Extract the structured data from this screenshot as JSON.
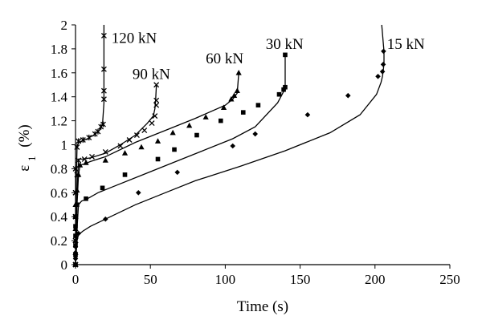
{
  "chart_data": {
    "type": "scatter",
    "title": "",
    "xlabel": "Time (s)",
    "ylabel": "ε1 (%)",
    "ylabel_main": "ε",
    "ylabel_sub": "1",
    "ylabel_unit": "(%)",
    "xlim": [
      0,
      250
    ],
    "ylim": [
      0,
      2
    ],
    "x_ticks": [
      0,
      50,
      100,
      150,
      200,
      250
    ],
    "y_ticks": [
      0,
      0.2,
      0.4,
      0.6,
      0.8,
      1,
      1.2,
      1.4,
      1.6,
      1.8,
      2
    ],
    "x_tick_labels": [
      "0",
      "50",
      "100",
      "150",
      "200",
      "250"
    ],
    "y_tick_labels": [
      "0",
      "0.2",
      "0.4",
      "0.6",
      "0.8",
      "1",
      "1.2",
      "1.4",
      "1.6",
      "1.8",
      "2"
    ],
    "grid": false,
    "legend": "none",
    "series": [
      {
        "name": "15 kN",
        "marker": "diamond",
        "points": [
          [
            0,
            0
          ],
          [
            0.5,
            0.1
          ],
          [
            1,
            0.2
          ],
          [
            2,
            0.25
          ],
          [
            5,
            0.28
          ],
          [
            10,
            0.32
          ],
          [
            20,
            0.38
          ],
          [
            40,
            0.5
          ],
          [
            60,
            0.6
          ],
          [
            80,
            0.7
          ],
          [
            110,
            0.82
          ],
          [
            140,
            0.95
          ],
          [
            170,
            1.1
          ],
          [
            190,
            1.25
          ],
          [
            201,
            1.42
          ],
          [
            204,
            1.52
          ],
          [
            205,
            1.57
          ],
          [
            205.5,
            1.62
          ],
          [
            206,
            1.68
          ],
          [
            206,
            1.78
          ]
        ],
        "markers": [
          [
            0,
            0
          ],
          [
            0,
            0.05
          ],
          [
            0,
            0.1
          ],
          [
            0,
            0.15
          ],
          [
            2,
            0.26
          ],
          [
            20,
            0.38
          ],
          [
            42,
            0.6
          ],
          [
            68,
            0.77
          ],
          [
            105,
            0.99
          ],
          [
            120,
            1.09
          ],
          [
            155,
            1.25
          ],
          [
            182,
            1.41
          ],
          [
            202,
            1.57
          ],
          [
            205,
            1.61
          ],
          [
            205.5,
            1.67
          ],
          [
            205.7,
            1.78
          ]
        ],
        "final_line_to": [
          204.5,
          2
        ]
      },
      {
        "name": "30 kN",
        "marker": "square",
        "points": [
          [
            0,
            0
          ],
          [
            1,
            0.3
          ],
          [
            2,
            0.5
          ],
          [
            4,
            0.53
          ],
          [
            8,
            0.55
          ],
          [
            15,
            0.6
          ],
          [
            25,
            0.65
          ],
          [
            45,
            0.75
          ],
          [
            65,
            0.85
          ],
          [
            85,
            0.95
          ],
          [
            105,
            1.05
          ],
          [
            120,
            1.15
          ],
          [
            135,
            1.35
          ],
          [
            138,
            1.42
          ],
          [
            140,
            1.47
          ],
          [
            140,
            1.75
          ]
        ],
        "markers": [
          [
            0,
            0
          ],
          [
            0,
            0.08
          ],
          [
            0,
            0.16
          ],
          [
            0,
            0.24
          ],
          [
            0,
            0.32
          ],
          [
            0,
            0.4
          ],
          [
            1,
            0.5
          ],
          [
            7,
            0.55
          ],
          [
            18,
            0.64
          ],
          [
            33,
            0.75
          ],
          [
            55,
            0.88
          ],
          [
            66,
            0.96
          ],
          [
            81,
            1.08
          ],
          [
            97,
            1.2
          ],
          [
            112,
            1.27
          ],
          [
            122,
            1.33
          ],
          [
            136,
            1.42
          ],
          [
            139,
            1.46
          ],
          [
            140,
            1.48
          ],
          [
            140,
            1.75
          ]
        ]
      },
      {
        "name": "60 kN",
        "marker": "triangle",
        "points": [
          [
            0,
            0
          ],
          [
            1,
            0.5
          ],
          [
            2,
            0.75
          ],
          [
            3,
            0.83
          ],
          [
            6,
            0.84
          ],
          [
            10,
            0.86
          ],
          [
            20,
            0.9
          ],
          [
            40,
            1.02
          ],
          [
            60,
            1.12
          ],
          [
            80,
            1.22
          ],
          [
            100,
            1.33
          ],
          [
            105,
            1.38
          ],
          [
            108,
            1.43
          ],
          [
            109,
            1.6
          ]
        ],
        "markers": [
          [
            0,
            0
          ],
          [
            0,
            0.1
          ],
          [
            0,
            0.2
          ],
          [
            0,
            0.3
          ],
          [
            0,
            0.4
          ],
          [
            0,
            0.5
          ],
          [
            1,
            0.62
          ],
          [
            2,
            0.75
          ],
          [
            3,
            0.83
          ],
          [
            7,
            0.85
          ],
          [
            20,
            0.87
          ],
          [
            33,
            0.93
          ],
          [
            44,
            0.98
          ],
          [
            55,
            1.03
          ],
          [
            65,
            1.1
          ],
          [
            76,
            1.16
          ],
          [
            87,
            1.23
          ],
          [
            99,
            1.31
          ],
          [
            104,
            1.38
          ],
          [
            106,
            1.41
          ],
          [
            108,
            1.45
          ],
          [
            109,
            1.6
          ]
        ]
      },
      {
        "name": "90 kN",
        "marker": "x",
        "points": [
          [
            0,
            0
          ],
          [
            1,
            0.6
          ],
          [
            2,
            0.88
          ],
          [
            5,
            0.88
          ],
          [
            10,
            0.89
          ],
          [
            20,
            0.93
          ],
          [
            30,
            1.0
          ],
          [
            40,
            1.08
          ],
          [
            48,
            1.18
          ],
          [
            52,
            1.24
          ],
          [
            53,
            1.3
          ],
          [
            53.5,
            1.37
          ],
          [
            54,
            1.5
          ]
        ],
        "markers": [
          [
            0,
            0
          ],
          [
            0,
            0.2
          ],
          [
            0,
            0.4
          ],
          [
            0,
            0.6
          ],
          [
            1,
            0.75
          ],
          [
            2,
            0.87
          ],
          [
            6,
            0.88
          ],
          [
            11,
            0.9
          ],
          [
            20,
            0.94
          ],
          [
            30,
            0.99
          ],
          [
            36,
            1.04
          ],
          [
            41,
            1.08
          ],
          [
            46,
            1.12
          ],
          [
            51,
            1.18
          ],
          [
            53,
            1.24
          ],
          [
            54,
            1.33
          ],
          [
            54,
            1.37
          ],
          [
            54,
            1.5
          ]
        ]
      },
      {
        "name": "120 kN",
        "marker": "star",
        "points": [
          [
            0,
            0
          ],
          [
            0.3,
            0.6
          ],
          [
            1,
            0.98
          ],
          [
            2,
            1.02
          ],
          [
            4,
            1.03
          ],
          [
            8,
            1.05
          ],
          [
            12,
            1.08
          ],
          [
            16,
            1.12
          ],
          [
            18,
            1.17
          ],
          [
            19,
            1.35
          ],
          [
            19,
            1.6
          ],
          [
            19,
            1.9
          ],
          [
            19,
            2.0
          ]
        ],
        "markers": [
          [
            0,
            0
          ],
          [
            0,
            0.2
          ],
          [
            0,
            0.4
          ],
          [
            0,
            0.6
          ],
          [
            0,
            0.8
          ],
          [
            1,
            0.98
          ],
          [
            2,
            1.03
          ],
          [
            5,
            1.04
          ],
          [
            9,
            1.06
          ],
          [
            13,
            1.09
          ],
          [
            15,
            1.11
          ],
          [
            17,
            1.15
          ],
          [
            18.5,
            1.17
          ],
          [
            19,
            1.38
          ],
          [
            19,
            1.45
          ],
          [
            19,
            1.63
          ],
          [
            19,
            1.91
          ]
        ]
      }
    ],
    "labels": [
      {
        "text": "120 kN",
        "at": [
          24,
          1.89
        ]
      },
      {
        "text": "90 kN",
        "at": [
          38,
          1.59
        ]
      },
      {
        "text": "60 kN",
        "at": [
          87,
          1.72
        ]
      },
      {
        "text": "30 kN",
        "at": [
          127,
          1.84
        ]
      },
      {
        "text": "15 kN",
        "at": [
          208,
          1.84
        ]
      }
    ]
  }
}
